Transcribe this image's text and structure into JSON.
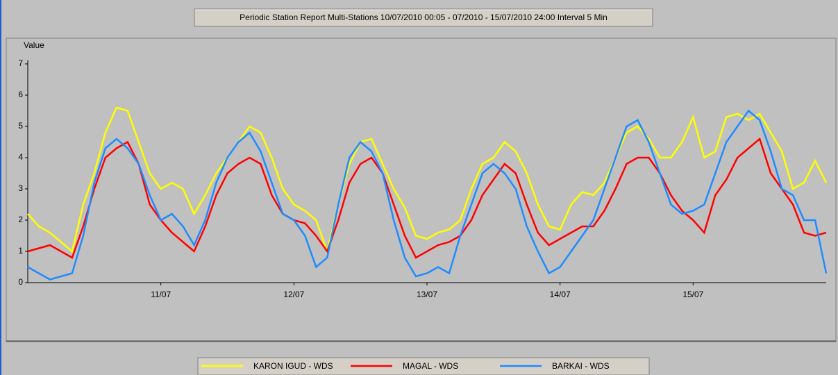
{
  "chart_data": {
    "type": "line",
    "title": "Periodic Station Report Multi-Stations 10/07/2010 00:05 - 07/2010 - 15/07/2010 24:00 Interval 5 Min",
    "y_label": "Value",
    "x": [
      0,
      2,
      4,
      6,
      8,
      10,
      12,
      14,
      16,
      18,
      20,
      22,
      24,
      26,
      28,
      30,
      32,
      34,
      36,
      38,
      40,
      42,
      44,
      46,
      48,
      50,
      52,
      54,
      56,
      58,
      60,
      62,
      64,
      66,
      68,
      70,
      72,
      74,
      76,
      78,
      80,
      82,
      84,
      86,
      88,
      90,
      92,
      94,
      96,
      98,
      100,
      102,
      104,
      106,
      108,
      110,
      112,
      114,
      116,
      118,
      120,
      122,
      124,
      126,
      128,
      130,
      132,
      134,
      136,
      138,
      140,
      142,
      144
    ],
    "xlim": [
      0,
      144
    ],
    "xticks": [
      {
        "value": 24,
        "label": "11/07"
      },
      {
        "value": 48,
        "label": "12/07"
      },
      {
        "value": 72,
        "label": "13/07"
      },
      {
        "value": 96,
        "label": "14/07"
      },
      {
        "value": 120,
        "label": "15/07"
      }
    ],
    "ylim": [
      0,
      7
    ],
    "yticks": [
      0,
      1,
      2,
      3,
      4,
      5,
      6,
      7
    ],
    "series": [
      {
        "name": "KARON IGUD - WDS",
        "color": "#ffff00",
        "values": [
          2.2,
          1.8,
          1.6,
          1.3,
          1.0,
          2.5,
          3.5,
          4.8,
          5.6,
          5.5,
          4.5,
          3.5,
          3.0,
          3.2,
          3.0,
          2.2,
          2.8,
          3.5,
          4.0,
          4.5,
          5.0,
          4.8,
          4.0,
          3.0,
          2.5,
          2.3,
          2.0,
          1.0,
          2.5,
          3.8,
          4.5,
          4.6,
          3.8,
          3.0,
          2.4,
          1.5,
          1.4,
          1.6,
          1.7,
          2.0,
          3.0,
          3.8,
          4.0,
          4.5,
          4.2,
          3.5,
          2.5,
          1.8,
          1.7,
          2.5,
          2.9,
          2.8,
          3.2,
          4.0,
          4.8,
          5.0,
          4.6,
          4.0,
          4.0,
          4.5,
          5.3,
          4.0,
          4.2,
          5.3,
          5.4,
          5.2,
          5.4,
          4.8,
          4.2,
          3.0,
          3.2,
          3.9,
          3.2
        ]
      },
      {
        "name": "MAGAL - WDS",
        "color": "#ff0000",
        "values": [
          1.0,
          1.1,
          1.2,
          1.0,
          0.8,
          1.8,
          3.0,
          4.0,
          4.3,
          4.5,
          3.8,
          2.5,
          2.0,
          1.6,
          1.3,
          1.0,
          1.8,
          2.8,
          3.5,
          3.8,
          4.0,
          3.8,
          2.8,
          2.2,
          2.0,
          1.9,
          1.5,
          1.0,
          2.0,
          3.2,
          3.8,
          4.0,
          3.5,
          2.5,
          1.5,
          0.8,
          1.0,
          1.2,
          1.3,
          1.5,
          2.0,
          2.8,
          3.3,
          3.8,
          3.5,
          2.5,
          1.6,
          1.2,
          1.4,
          1.6,
          1.8,
          1.8,
          2.3,
          3.0,
          3.8,
          4.0,
          4.0,
          3.5,
          2.8,
          2.3,
          2.0,
          1.6,
          2.8,
          3.3,
          4.0,
          4.3,
          4.6,
          3.5,
          3.0,
          2.5,
          1.6,
          1.5,
          1.6
        ]
      },
      {
        "name": "BARKAI - WDS",
        "color": "#1e8cff",
        "values": [
          0.5,
          0.3,
          0.1,
          0.2,
          0.3,
          1.5,
          3.2,
          4.3,
          4.6,
          4.3,
          3.8,
          2.8,
          2.0,
          2.2,
          1.8,
          1.2,
          2.0,
          3.2,
          4.0,
          4.5,
          4.8,
          4.2,
          3.2,
          2.2,
          2.0,
          1.5,
          0.5,
          0.8,
          2.5,
          4.0,
          4.5,
          4.2,
          3.5,
          2.0,
          0.8,
          0.2,
          0.3,
          0.5,
          0.3,
          1.5,
          2.5,
          3.5,
          3.8,
          3.5,
          3.0,
          1.8,
          1.0,
          0.3,
          0.5,
          1.0,
          1.5,
          2.0,
          3.0,
          4.0,
          5.0,
          5.2,
          4.5,
          3.5,
          2.5,
          2.2,
          2.3,
          2.5,
          3.5,
          4.5,
          5.0,
          5.5,
          5.2,
          4.2,
          3.0,
          2.8,
          2.0,
          2.0,
          0.3
        ]
      }
    ]
  }
}
